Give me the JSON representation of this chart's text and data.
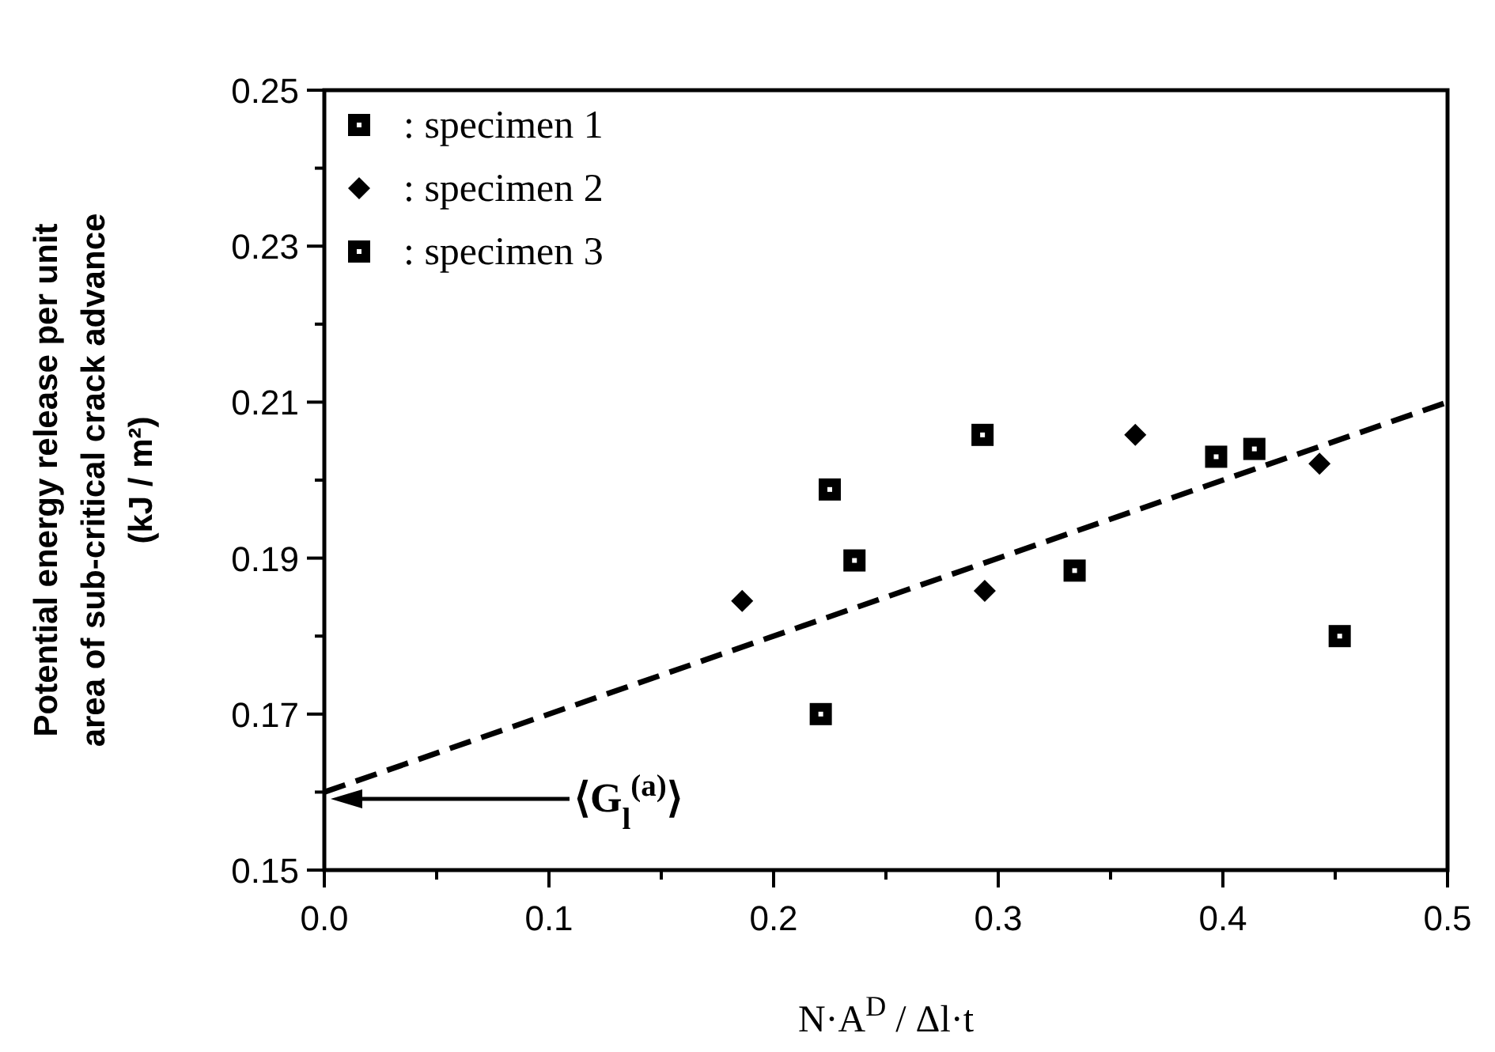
{
  "chart_data": {
    "type": "scatter",
    "xlabel": "N·A$^{D}$ / Δl·t",
    "ylabel": "Potential energy release per unit\narea of sub-critical crack advance\n(kJ / m²)",
    "xlim": [
      0,
      0.5
    ],
    "ylim": [
      0.15,
      0.25
    ],
    "xticks": [
      {
        "value": 0,
        "label": "0.0"
      },
      {
        "value": 0.05,
        "label": null
      },
      {
        "value": 0.1,
        "label": "0.1"
      },
      {
        "value": 0.15,
        "label": null
      },
      {
        "value": 0.2,
        "label": "0.2"
      },
      {
        "value": 0.25,
        "label": null
      },
      {
        "value": 0.3,
        "label": "0.3"
      },
      {
        "value": 0.35,
        "label": null
      },
      {
        "value": 0.4,
        "label": "0.4"
      },
      {
        "value": 0.45,
        "label": null
      },
      {
        "value": 0.5,
        "label": "0.5"
      }
    ],
    "yticks": [
      0.15,
      {
        "value": 0.16,
        "label": null
      },
      0.17,
      {
        "value": 0.18,
        "label": null
      },
      0.19,
      {
        "value": 0.2,
        "label": null
      },
      0.21,
      {
        "value": 0.22,
        "label": null
      },
      0.23,
      {
        "value": 0.24,
        "label": null
      },
      0.25
    ],
    "legend": "top left",
    "grid": false,
    "series": [
      {
        "name": ": specimen 1",
        "color": "#000000",
        "marker": "square",
        "x": [
          0.221,
          0.397,
          0.414,
          0.452
        ],
        "values": [
          0.17,
          0.203,
          0.204,
          0.18
        ]
      },
      {
        "name": ": specimen 2",
        "color": "#000000",
        "marker": "diamond",
        "x": [
          0.186,
          0.294,
          0.361,
          0.443
        ],
        "values": [
          0.1845,
          0.1858,
          0.2058,
          0.2021
        ]
      },
      {
        "name": ": specimen 3",
        "color": "#000000",
        "marker": "square",
        "x": [
          0.225,
          0.236,
          0.293,
          0.334
        ],
        "values": [
          0.1988,
          0.1897,
          0.2058,
          0.1884
        ]
      },
      {
        "type": "line",
        "color": "#000000",
        "marker": "none",
        "line_style": "dashed",
        "x": [
          0,
          0.5
        ],
        "values": [
          0.16,
          0.21
        ]
      }
    ],
    "annotations": [
      "⟨G$_{l}$$^{(a)}$⟩"
    ]
  }
}
